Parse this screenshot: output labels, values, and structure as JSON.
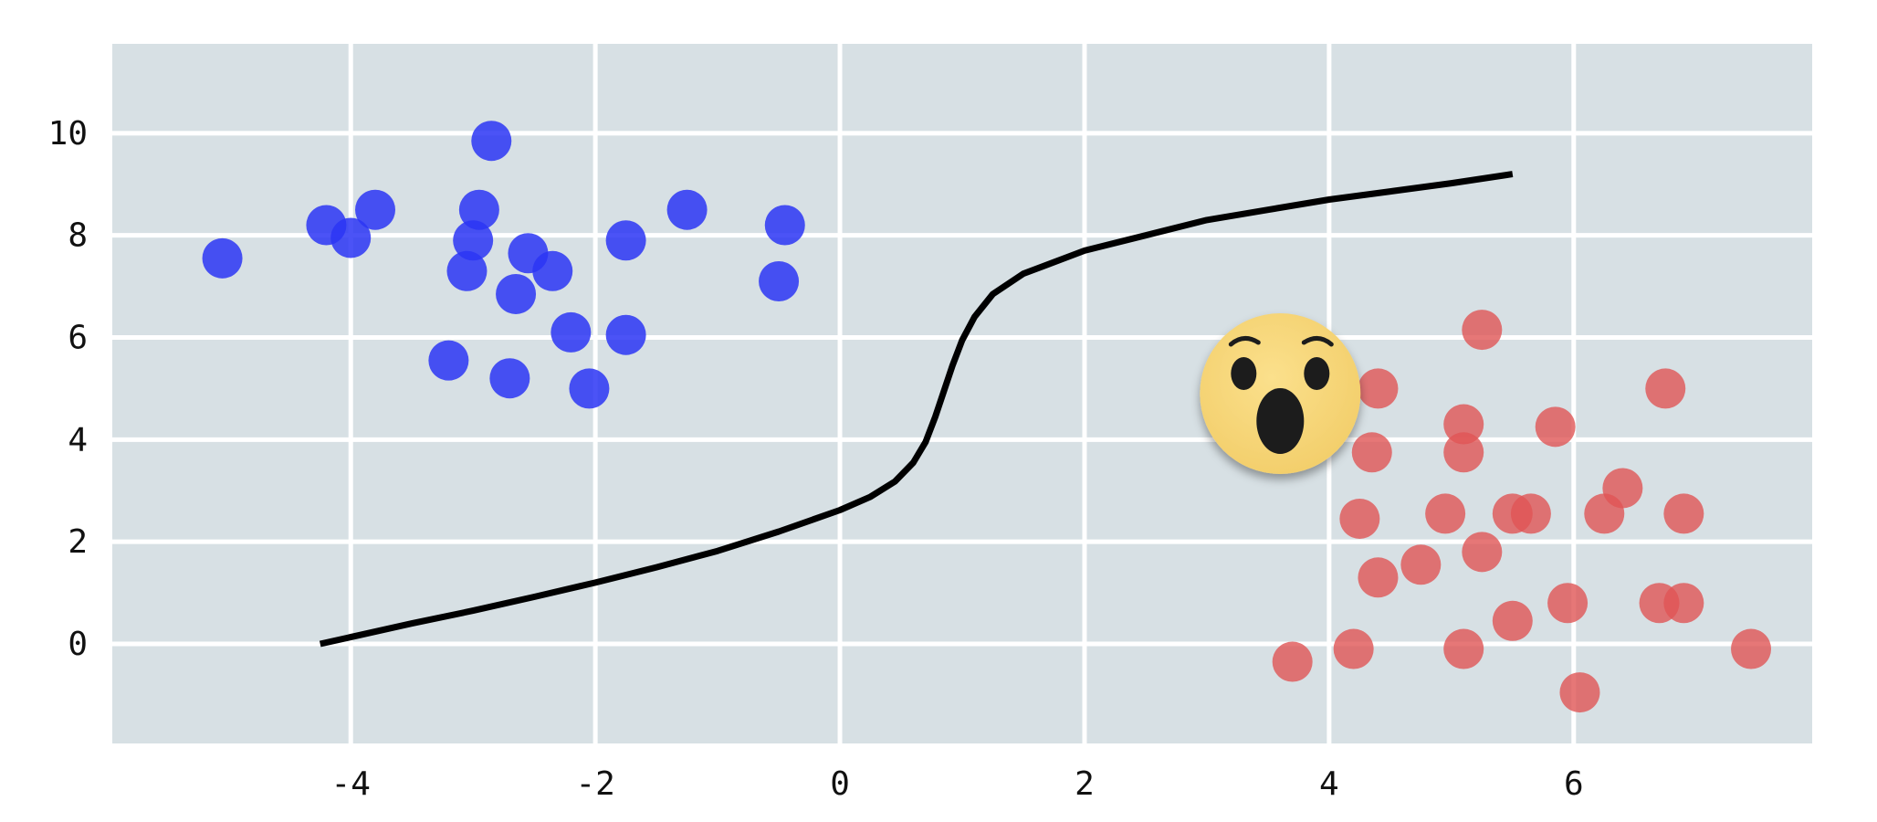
{
  "chart_data": {
    "type": "scatter",
    "title": "",
    "xlabel": "",
    "ylabel": "",
    "xlim": [
      -5.95,
      7.95
    ],
    "ylim": [
      -1.95,
      11.75
    ],
    "grid": true,
    "x_ticks": [
      -4,
      -2,
      0,
      2,
      4,
      6
    ],
    "x_tick_labels": [
      "-4",
      "-2",
      "0",
      "2",
      "4",
      "6"
    ],
    "y_ticks": [
      0,
      2,
      4,
      6,
      8,
      10
    ],
    "y_tick_labels": [
      "0",
      "2",
      "4",
      "6",
      "8",
      "10"
    ],
    "colors": {
      "background": "#d7e0e4",
      "grid": "#ffffff",
      "series_blue": "#2b35f5",
      "series_red": "#e05555",
      "curve": "#000000"
    },
    "series": [
      {
        "color": "#2b35f5",
        "points": [
          [
            -5.05,
            7.55
          ],
          [
            -4.2,
            8.2
          ],
          [
            -4.0,
            7.95
          ],
          [
            -3.8,
            8.5
          ],
          [
            -2.85,
            9.85
          ],
          [
            -2.95,
            8.5
          ],
          [
            -3.0,
            7.9
          ],
          [
            -3.05,
            7.3
          ],
          [
            -2.55,
            7.65
          ],
          [
            -2.35,
            7.3
          ],
          [
            -2.65,
            6.85
          ],
          [
            -1.75,
            7.9
          ],
          [
            -1.25,
            8.5
          ],
          [
            -0.45,
            8.2
          ],
          [
            -0.5,
            7.1
          ],
          [
            -2.2,
            6.1
          ],
          [
            -1.75,
            6.05
          ],
          [
            -3.2,
            5.55
          ],
          [
            -2.7,
            5.2
          ],
          [
            -2.05,
            5.0
          ]
        ]
      },
      {
        "color": "#e05555",
        "points": [
          [
            5.25,
            6.15
          ],
          [
            4.4,
            5.0
          ],
          [
            6.75,
            5.0
          ],
          [
            5.1,
            4.3
          ],
          [
            5.85,
            4.25
          ],
          [
            4.35,
            3.75
          ],
          [
            5.1,
            3.75
          ],
          [
            6.4,
            3.05
          ],
          [
            4.25,
            2.45
          ],
          [
            4.95,
            2.55
          ],
          [
            5.5,
            2.55
          ],
          [
            5.65,
            2.55
          ],
          [
            6.25,
            2.55
          ],
          [
            6.9,
            2.55
          ],
          [
            5.25,
            1.8
          ],
          [
            4.75,
            1.55
          ],
          [
            4.4,
            1.3
          ],
          [
            5.95,
            0.8
          ],
          [
            6.7,
            0.8
          ],
          [
            6.9,
            0.8
          ],
          [
            5.5,
            0.45
          ],
          [
            4.2,
            -0.1
          ],
          [
            5.1,
            -0.1
          ],
          [
            7.45,
            -0.1
          ],
          [
            3.7,
            -0.35
          ],
          [
            6.05,
            -0.95
          ]
        ]
      }
    ],
    "curve": [
      [
        -4.25,
        0.0
      ],
      [
        -3.5,
        0.4
      ],
      [
        -3.0,
        0.65
      ],
      [
        -2.5,
        0.92
      ],
      [
        -2.0,
        1.2
      ],
      [
        -1.5,
        1.5
      ],
      [
        -1.0,
        1.82
      ],
      [
        -0.5,
        2.2
      ],
      [
        0.0,
        2.62
      ],
      [
        0.25,
        2.88
      ],
      [
        0.45,
        3.18
      ],
      [
        0.6,
        3.55
      ],
      [
        0.7,
        3.95
      ],
      [
        0.78,
        4.45
      ],
      [
        0.85,
        4.95
      ],
      [
        0.92,
        5.45
      ],
      [
        1.0,
        5.95
      ],
      [
        1.1,
        6.4
      ],
      [
        1.25,
        6.85
      ],
      [
        1.5,
        7.25
      ],
      [
        2.0,
        7.7
      ],
      [
        2.5,
        8.0
      ],
      [
        3.0,
        8.3
      ],
      [
        3.5,
        8.5
      ],
      [
        4.0,
        8.7
      ],
      [
        4.5,
        8.86
      ],
      [
        5.0,
        9.02
      ],
      [
        5.5,
        9.2
      ]
    ],
    "annotation": {
      "icon": "surprised-face-emoji",
      "x": 3.6,
      "y": 4.9
    }
  }
}
